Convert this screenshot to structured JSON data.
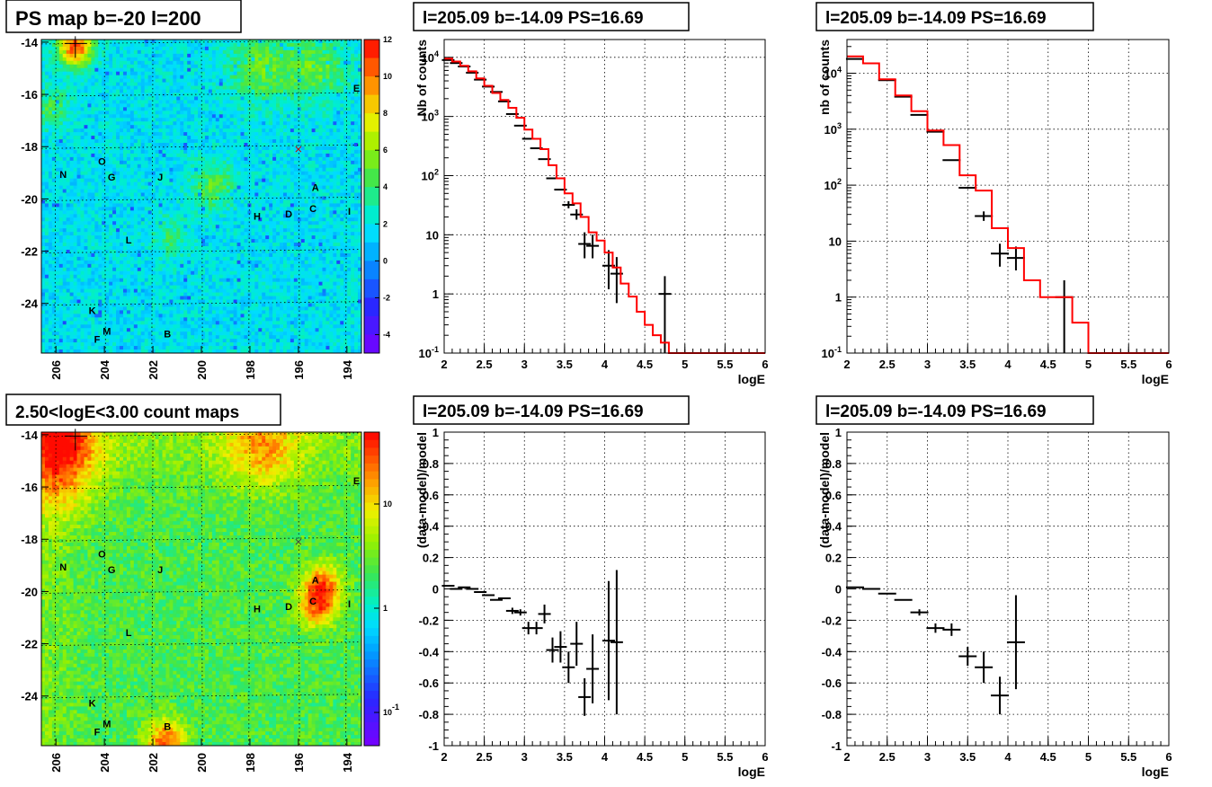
{
  "chart_data": [
    {
      "id": "map1",
      "type": "heatmap",
      "title": "PS map b=-20 l=200",
      "x_ticks": [
        "206",
        "204",
        "202",
        "200",
        "198",
        "196",
        "194"
      ],
      "y_ticks": [
        "-14",
        "-16",
        "-18",
        "-20",
        "-22",
        "-24"
      ],
      "colorbar_ticks": [
        "12",
        "10",
        "8",
        "6",
        "4",
        "2",
        "0",
        "-2",
        "-4"
      ],
      "scale": "linear",
      "sources": [
        "O",
        "N",
        "G",
        "J",
        "A",
        "C",
        "I",
        "H",
        "D",
        "L",
        "K",
        "M",
        "F",
        "B",
        "E"
      ]
    },
    {
      "id": "spec1",
      "type": "line",
      "title": "l=205.09 b=-14.09 PS=16.69",
      "xlabel": "logE",
      "ylabel": "Nb of counts",
      "xlim": [
        2,
        6
      ],
      "ylim": [
        0.1,
        20000
      ],
      "yscale": "log",
      "x_ticks": [
        "2",
        "2.5",
        "3",
        "3.5",
        "4",
        "4.5",
        "5",
        "5.5",
        "6"
      ],
      "y_ticks": [
        "10^{4}",
        "10^{3}",
        "10^{2}",
        "10",
        "1",
        "10^{-1}"
      ],
      "grid": true,
      "series": [
        {
          "kind": "errorbars",
          "color": "#000000",
          "x": [
            2.05,
            2.15,
            2.25,
            2.35,
            2.45,
            2.55,
            2.65,
            2.75,
            2.85,
            2.95,
            3.05,
            3.15,
            3.25,
            3.35,
            3.45,
            3.55,
            3.65,
            3.75,
            3.85,
            4.05,
            4.15,
            4.75
          ],
          "y": [
            9000,
            8000,
            7000,
            5500,
            4200,
            3200,
            2600,
            1800,
            1100,
            700,
            420,
            290,
            190,
            90,
            58,
            32,
            22,
            7,
            6.5,
            3,
            2.2,
            1
          ],
          "err_lo": [
            0,
            0,
            0,
            0,
            0,
            0,
            0,
            0,
            0,
            0,
            0,
            0,
            0,
            0,
            0,
            4,
            4,
            3,
            2.5,
            1.8,
            1.5,
            0.95
          ],
          "err_hi": [
            0,
            0,
            0,
            0,
            0,
            0,
            0,
            0,
            0,
            0,
            0,
            0,
            0,
            0,
            0,
            5,
            5,
            4,
            3.5,
            2.5,
            2,
            1
          ]
        },
        {
          "kind": "step",
          "color": "#ff0000",
          "edges": [
            2.0,
            2.1,
            2.2,
            2.3,
            2.4,
            2.5,
            2.6,
            2.7,
            2.8,
            2.9,
            3.0,
            3.1,
            3.2,
            3.3,
            3.4,
            3.5,
            3.6,
            3.7,
            3.8,
            3.9,
            4.0,
            4.1,
            4.2,
            4.3,
            4.4,
            4.5,
            4.6,
            4.7,
            4.8,
            6.0
          ],
          "values": [
            9500,
            8500,
            7200,
            5800,
            4400,
            3300,
            2500,
            1900,
            1400,
            950,
            600,
            420,
            280,
            150,
            90,
            50,
            34,
            20,
            11,
            8,
            5,
            2.8,
            1.5,
            0.9,
            0.5,
            0.3,
            0.2,
            0.15,
            0.1
          ]
        }
      ]
    },
    {
      "id": "spec2",
      "type": "line",
      "title": "l=205.09 b=-14.09 PS=16.69",
      "xlabel": "logE",
      "ylabel": "nb of counts",
      "xlim": [
        2,
        6
      ],
      "ylim": [
        0.1,
        40000
      ],
      "yscale": "log",
      "x_ticks": [
        "2",
        "2.5",
        "3",
        "3.5",
        "4",
        "4.5",
        "5",
        "5.5",
        "6"
      ],
      "y_ticks": [
        "10^{4}",
        "10^{3}",
        "10^{2}",
        "10",
        "1",
        "10^{-1}"
      ],
      "grid": true,
      "series": [
        {
          "kind": "errorbars",
          "color": "#000000",
          "x": [
            2.1,
            2.5,
            2.7,
            2.9,
            3.1,
            3.3,
            3.5,
            3.7,
            3.9,
            4.1,
            4.7
          ],
          "y": [
            18000,
            7500,
            3800,
            1800,
            900,
            280,
            90,
            28,
            6,
            5,
            1
          ],
          "err_lo": [
            0,
            0,
            0,
            0,
            0,
            0,
            0,
            5,
            2.5,
            2,
            0.95
          ],
          "err_hi": [
            0,
            0,
            0,
            0,
            0,
            0,
            0,
            6,
            3,
            3,
            1
          ]
        },
        {
          "kind": "step",
          "color": "#ff0000",
          "edges": [
            2.0,
            2.2,
            2.4,
            2.6,
            2.8,
            3.0,
            3.2,
            3.4,
            3.6,
            3.8,
            4.0,
            4.2,
            4.4,
            4.6,
            4.8,
            5.0,
            6.0
          ],
          "values": [
            20000,
            15000,
            7800,
            4000,
            2100,
            950,
            520,
            150,
            80,
            17,
            7.5,
            2,
            1,
            1,
            0.35,
            0.1
          ]
        }
      ]
    },
    {
      "id": "map2",
      "type": "heatmap",
      "title": "2.50<logE<3.00 count maps",
      "x_ticks": [
        "206",
        "204",
        "202",
        "200",
        "198",
        "196",
        "194"
      ],
      "y_ticks": [
        "-14",
        "-16",
        "-18",
        "-20",
        "-22",
        "-24"
      ],
      "colorbar_ticks": [
        "10",
        "1",
        "10^{-1}"
      ],
      "scale": "log",
      "sources": [
        "O",
        "N",
        "G",
        "J",
        "A",
        "C",
        "I",
        "H",
        "D",
        "L",
        "K",
        "M",
        "F",
        "B",
        "E"
      ]
    },
    {
      "id": "res1",
      "type": "scatter",
      "title": "l=205.09 b=-14.09 PS=16.69",
      "xlabel": "logE",
      "ylabel": "(data-model)/model",
      "xlim": [
        2,
        6
      ],
      "ylim": [
        -1,
        1
      ],
      "x_ticks": [
        "2",
        "2.5",
        "3",
        "3.5",
        "4",
        "4.5",
        "5",
        "5.5",
        "6"
      ],
      "y_ticks": [
        "1",
        "0.8",
        "0.6",
        "0.4",
        "0.2",
        "0",
        "-0.2",
        "-0.4",
        "-0.6",
        "-0.8",
        "-1"
      ],
      "grid": true,
      "series": [
        {
          "kind": "errorbars",
          "color": "#000000",
          "x": [
            2.05,
            2.15,
            2.25,
            2.35,
            2.45,
            2.55,
            2.65,
            2.75,
            2.85,
            2.95,
            3.05,
            3.15,
            3.25,
            3.35,
            3.45,
            3.55,
            3.65,
            3.75,
            3.85,
            4.05,
            4.15
          ],
          "y": [
            0.02,
            0.0,
            0.01,
            0.0,
            -0.02,
            -0.04,
            -0.07,
            -0.06,
            -0.14,
            -0.15,
            -0.25,
            -0.25,
            -0.16,
            -0.39,
            -0.37,
            -0.5,
            -0.35,
            -0.69,
            -0.51,
            -0.33,
            -0.34
          ],
          "err": [
            0,
            0,
            0,
            0,
            0,
            0,
            0,
            0,
            0.02,
            0.02,
            0.04,
            0.04,
            0.06,
            0.08,
            0.1,
            0.1,
            0.14,
            0.12,
            0.22,
            0.38,
            0.46
          ]
        }
      ]
    },
    {
      "id": "res2",
      "type": "scatter",
      "title": "l=205.09 b=-14.09 PS=16.69",
      "xlabel": "logE",
      "ylabel": "(data-model)/model",
      "xlim": [
        2,
        6
      ],
      "ylim": [
        -1,
        1
      ],
      "x_ticks": [
        "2",
        "2.5",
        "3",
        "3.5",
        "4",
        "4.5",
        "5",
        "5.5",
        "6"
      ],
      "y_ticks": [
        "1",
        "0.8",
        "0.6",
        "0.4",
        "0.2",
        "0",
        "-0.2",
        "-0.4",
        "-0.6",
        "-0.8",
        "-1"
      ],
      "grid": true,
      "series": [
        {
          "kind": "errorbars",
          "color": "#000000",
          "x": [
            2.1,
            2.3,
            2.5,
            2.7,
            2.9,
            3.1,
            3.3,
            3.5,
            3.7,
            3.9,
            4.1
          ],
          "y": [
            0.01,
            0.0,
            -0.03,
            -0.07,
            -0.15,
            -0.25,
            -0.26,
            -0.43,
            -0.5,
            -0.68,
            -0.34
          ],
          "err": [
            0,
            0,
            0,
            0,
            0.02,
            0.03,
            0.04,
            0.06,
            0.1,
            0.12,
            0.3
          ]
        }
      ]
    }
  ]
}
